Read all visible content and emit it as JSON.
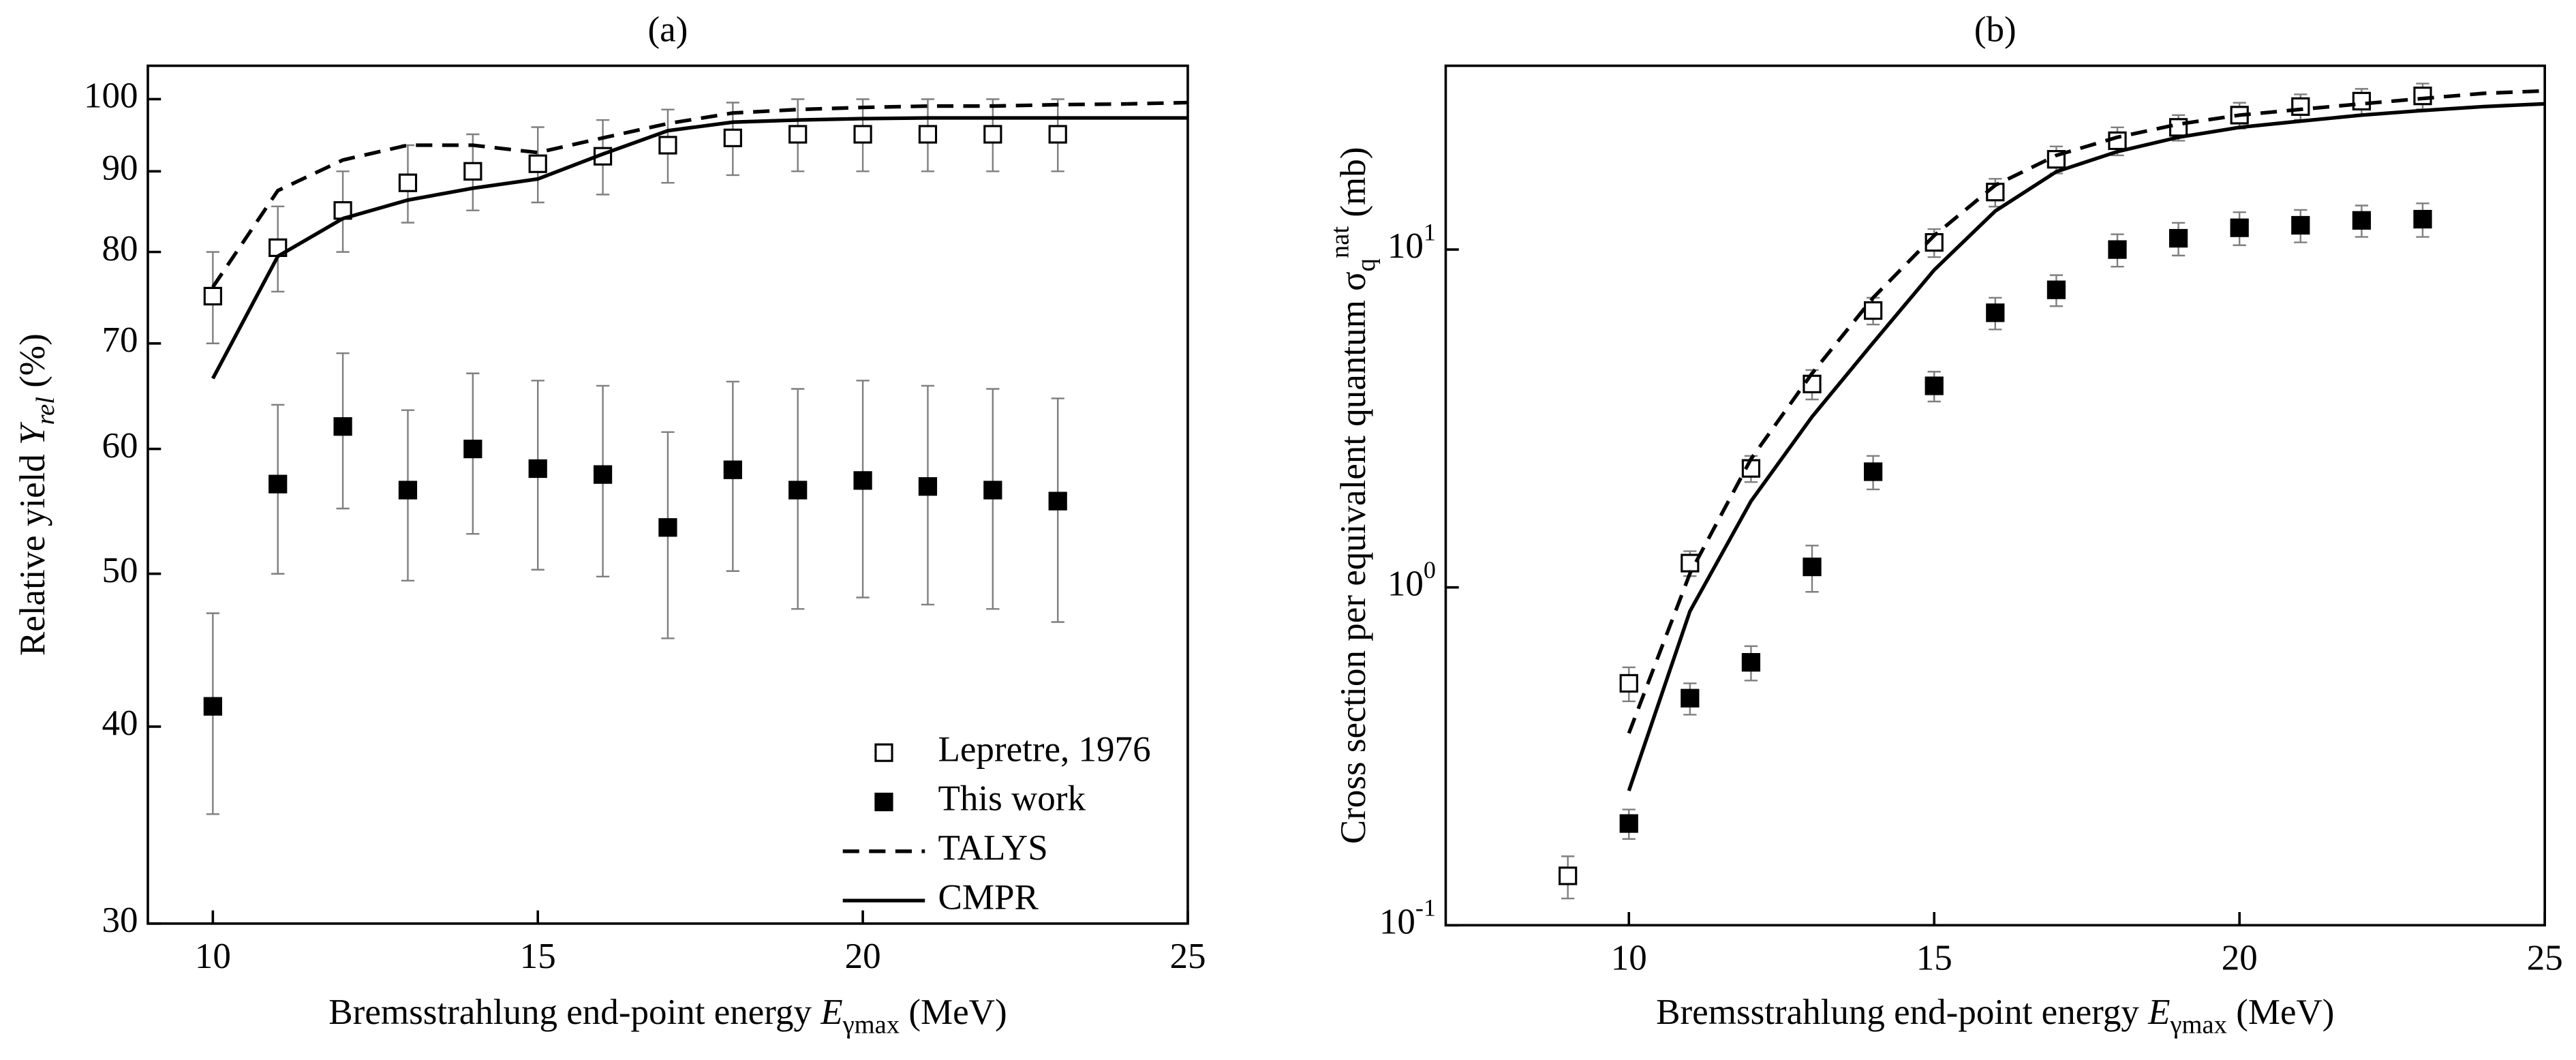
{
  "chart_data": [
    {
      "type": "line",
      "title": "(a)",
      "xlabel": [
        {
          "text": "Bremsstrahlung end-point energy ",
          "style": "normal"
        },
        {
          "text": "E",
          "style": "italic"
        },
        {
          "text": "γmax",
          "style": "sub"
        },
        {
          "text": " (MeV)",
          "style": "normal"
        }
      ],
      "ylabel": [
        {
          "text": "Relative yield ",
          "style": "normal"
        },
        {
          "text": "Y",
          "style": "italic"
        },
        {
          "text": "rel",
          "style": "italic-sub"
        },
        {
          "text": " (%)",
          "style": "normal"
        }
      ],
      "xlim": [
        9,
        25
      ],
      "xticks": [
        10,
        15,
        20,
        25
      ],
      "ylim": [
        30,
        105
      ],
      "ylog": true,
      "yticks": [
        30,
        40,
        50,
        60,
        70,
        80,
        90,
        100
      ],
      "legend": "lower right",
      "errorbar_color": "#7f7f7f",
      "series": [
        {
          "name": "Lepretre, 1976",
          "marker": "open-square",
          "color": "#000000",
          "x": [
            10,
            11,
            12,
            13,
            14,
            15,
            16,
            17,
            18,
            19,
            20,
            21,
            22,
            23
          ],
          "values": [
            75,
            80.5,
            85,
            88.5,
            90,
            91,
            92,
            93.5,
            94.5,
            95,
            95,
            95,
            95,
            95
          ],
          "errors": [
            5,
            5,
            5,
            5,
            5,
            5,
            5,
            5,
            5,
            5,
            5,
            5,
            5,
            5
          ]
        },
        {
          "name": "This work",
          "marker": "filled-square",
          "color": "#000000",
          "x": [
            10,
            11,
            12,
            13,
            14,
            15,
            16,
            17,
            18,
            19,
            20,
            21,
            22,
            23
          ],
          "values": [
            41.2,
            57,
            62,
            56.5,
            60,
            58.3,
            57.8,
            53.5,
            58.2,
            56.5,
            57.3,
            56.8,
            56.5,
            55.6
          ],
          "errors": [
            6,
            7,
            7,
            7,
            7,
            8,
            8,
            8,
            8,
            9,
            9,
            9,
            9,
            9
          ]
        },
        {
          "name": "TALYS",
          "line": "dashed",
          "color": "#000000",
          "x": [
            10,
            11,
            12,
            13,
            14,
            15,
            16,
            17,
            18,
            19,
            20,
            21,
            22,
            23,
            24,
            25
          ],
          "values": [
            76,
            87.5,
            91.5,
            93.5,
            93.5,
            92.5,
            94.5,
            96.5,
            98,
            98.5,
            98.8,
            99,
            99,
            99.2,
            99.3,
            99.5
          ]
        },
        {
          "name": "CMPR",
          "line": "solid",
          "color": "#000000",
          "x": [
            10,
            11,
            12,
            13,
            14,
            15,
            16,
            17,
            18,
            19,
            20,
            21,
            22,
            23,
            24,
            25
          ],
          "values": [
            66.5,
            79.5,
            84,
            86.3,
            87.8,
            89,
            92.3,
            95.5,
            96.7,
            97,
            97.2,
            97.3,
            97.3,
            97.3,
            97.3,
            97.3
          ]
        }
      ]
    },
    {
      "type": "line",
      "title": "(b)",
      "xlabel": [
        {
          "text": "Bremsstrahlung end-point energy ",
          "style": "normal"
        },
        {
          "text": "E",
          "style": "italic"
        },
        {
          "text": "γmax",
          "style": "sub"
        },
        {
          "text": " (MeV)",
          "style": "normal"
        }
      ],
      "ylabel": [
        {
          "text": "Cross section per equivalent quantum ",
          "style": "normal"
        },
        {
          "text": "σ",
          "style": "normal"
        },
        {
          "text": "q",
          "style": "sub"
        },
        {
          "text": "nat",
          "style": "sup"
        },
        {
          "text": " (mb)",
          "style": "normal"
        }
      ],
      "xlim": [
        7,
        25
      ],
      "xticks": [
        10,
        15,
        20,
        25
      ],
      "ylim": [
        0.1,
        35
      ],
      "ylog": true,
      "yticks": [
        {
          "value": 0.1,
          "label": "10",
          "exponent": "-1"
        },
        {
          "value": 1,
          "label": "10",
          "exponent": "0"
        },
        {
          "value": 10,
          "label": "10",
          "exponent": "1"
        }
      ],
      "errorbar_color": "#7f7f7f",
      "series": [
        {
          "marker": "open-square",
          "color": "#000000",
          "x": [
            9,
            10,
            11,
            12,
            13,
            14,
            15,
            16,
            17,
            18,
            19,
            20,
            21,
            22,
            23
          ],
          "values": [
            0.14,
            0.52,
            1.18,
            2.25,
            4.0,
            6.6,
            10.5,
            14.8,
            18.5,
            21,
            23,
            25,
            26.5,
            27.5,
            28.5
          ],
          "errors": [
            0.02,
            0.06,
            0.1,
            0.2,
            0.4,
            0.6,
            1,
            1.4,
            1.7,
            2,
            2,
            2.2,
            2.3,
            2.4,
            2.5
          ]
        },
        {
          "marker": "filled-square",
          "color": "#000000",
          "x": [
            10,
            11,
            12,
            13,
            14,
            15,
            16,
            17,
            18,
            19,
            20,
            21,
            22,
            23
          ],
          "values": [
            0.2,
            0.47,
            0.6,
            1.15,
            2.2,
            3.95,
            6.5,
            7.6,
            10,
            10.8,
            11.6,
            11.8,
            12.2,
            12.3
          ],
          "errors": [
            0.02,
            0.05,
            0.07,
            0.18,
            0.25,
            0.4,
            0.7,
            0.8,
            1.1,
            1.2,
            1.3,
            1.3,
            1.3,
            1.4
          ]
        },
        {
          "line": "dashed",
          "color": "#000000",
          "x": [
            10,
            11,
            12,
            13,
            14,
            15,
            16,
            17,
            18,
            19,
            20,
            21,
            22,
            23,
            24,
            25
          ],
          "values": [
            0.37,
            1.1,
            2.4,
            4.3,
            7.2,
            11,
            15.5,
            19,
            21.5,
            23.5,
            25,
            26,
            27,
            28,
            29,
            29.5
          ]
        },
        {
          "line": "solid",
          "color": "#000000",
          "x": [
            10,
            11,
            12,
            13,
            14,
            15,
            16,
            17,
            18,
            19,
            20,
            21,
            22,
            23,
            24,
            25
          ],
          "values": [
            0.25,
            0.85,
            1.8,
            3.2,
            5.3,
            8.7,
            13,
            17,
            19.5,
            21.5,
            23,
            24,
            25,
            25.8,
            26.5,
            27
          ]
        }
      ]
    }
  ]
}
